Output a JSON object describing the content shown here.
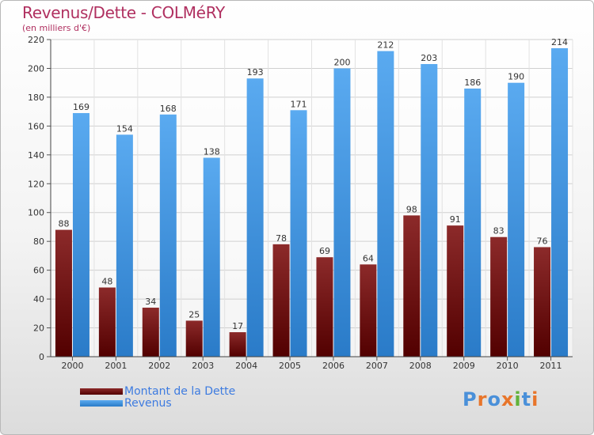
{
  "header": {
    "title": "Revenus/Dette - COLMéRY",
    "subtitle": "(en milliers d'€)"
  },
  "legend": {
    "items": [
      {
        "label": "Montant de la Dette",
        "color": "#6b0f0f"
      },
      {
        "label": "Revenus",
        "color": "#3e95e0"
      }
    ]
  },
  "logo": {
    "text": "Proxiti",
    "colors": [
      "#4a90d9",
      "#e8752a",
      "#4a90d9",
      "#e8752a",
      "#62b23a",
      "#4a90d9",
      "#e8752a"
    ]
  },
  "chart_data": {
    "type": "bar",
    "title": "Revenus/Dette - COLMéRY",
    "ylabel": "(en milliers d'€)",
    "xlabel": "",
    "ylim": [
      0,
      220
    ],
    "yticks": [
      0,
      20,
      40,
      60,
      80,
      100,
      120,
      140,
      160,
      180,
      200,
      220
    ],
    "grid": true,
    "categories": [
      "2000",
      "2001",
      "2002",
      "2003",
      "2004",
      "2005",
      "2006",
      "2007",
      "2008",
      "2009",
      "2010",
      "2011"
    ],
    "series": [
      {
        "name": "Montant de la Dette",
        "color_top": "#8c2a2a",
        "color_bottom": "#520000",
        "values": [
          88,
          48,
          34,
          25,
          17,
          78,
          69,
          64,
          98,
          91,
          83,
          76
        ]
      },
      {
        "name": "Revenus",
        "color_top": "#5aaaf0",
        "color_bottom": "#2a7bc8",
        "values": [
          169,
          154,
          168,
          138,
          193,
          171,
          200,
          212,
          203,
          186,
          190,
          214
        ]
      }
    ]
  }
}
